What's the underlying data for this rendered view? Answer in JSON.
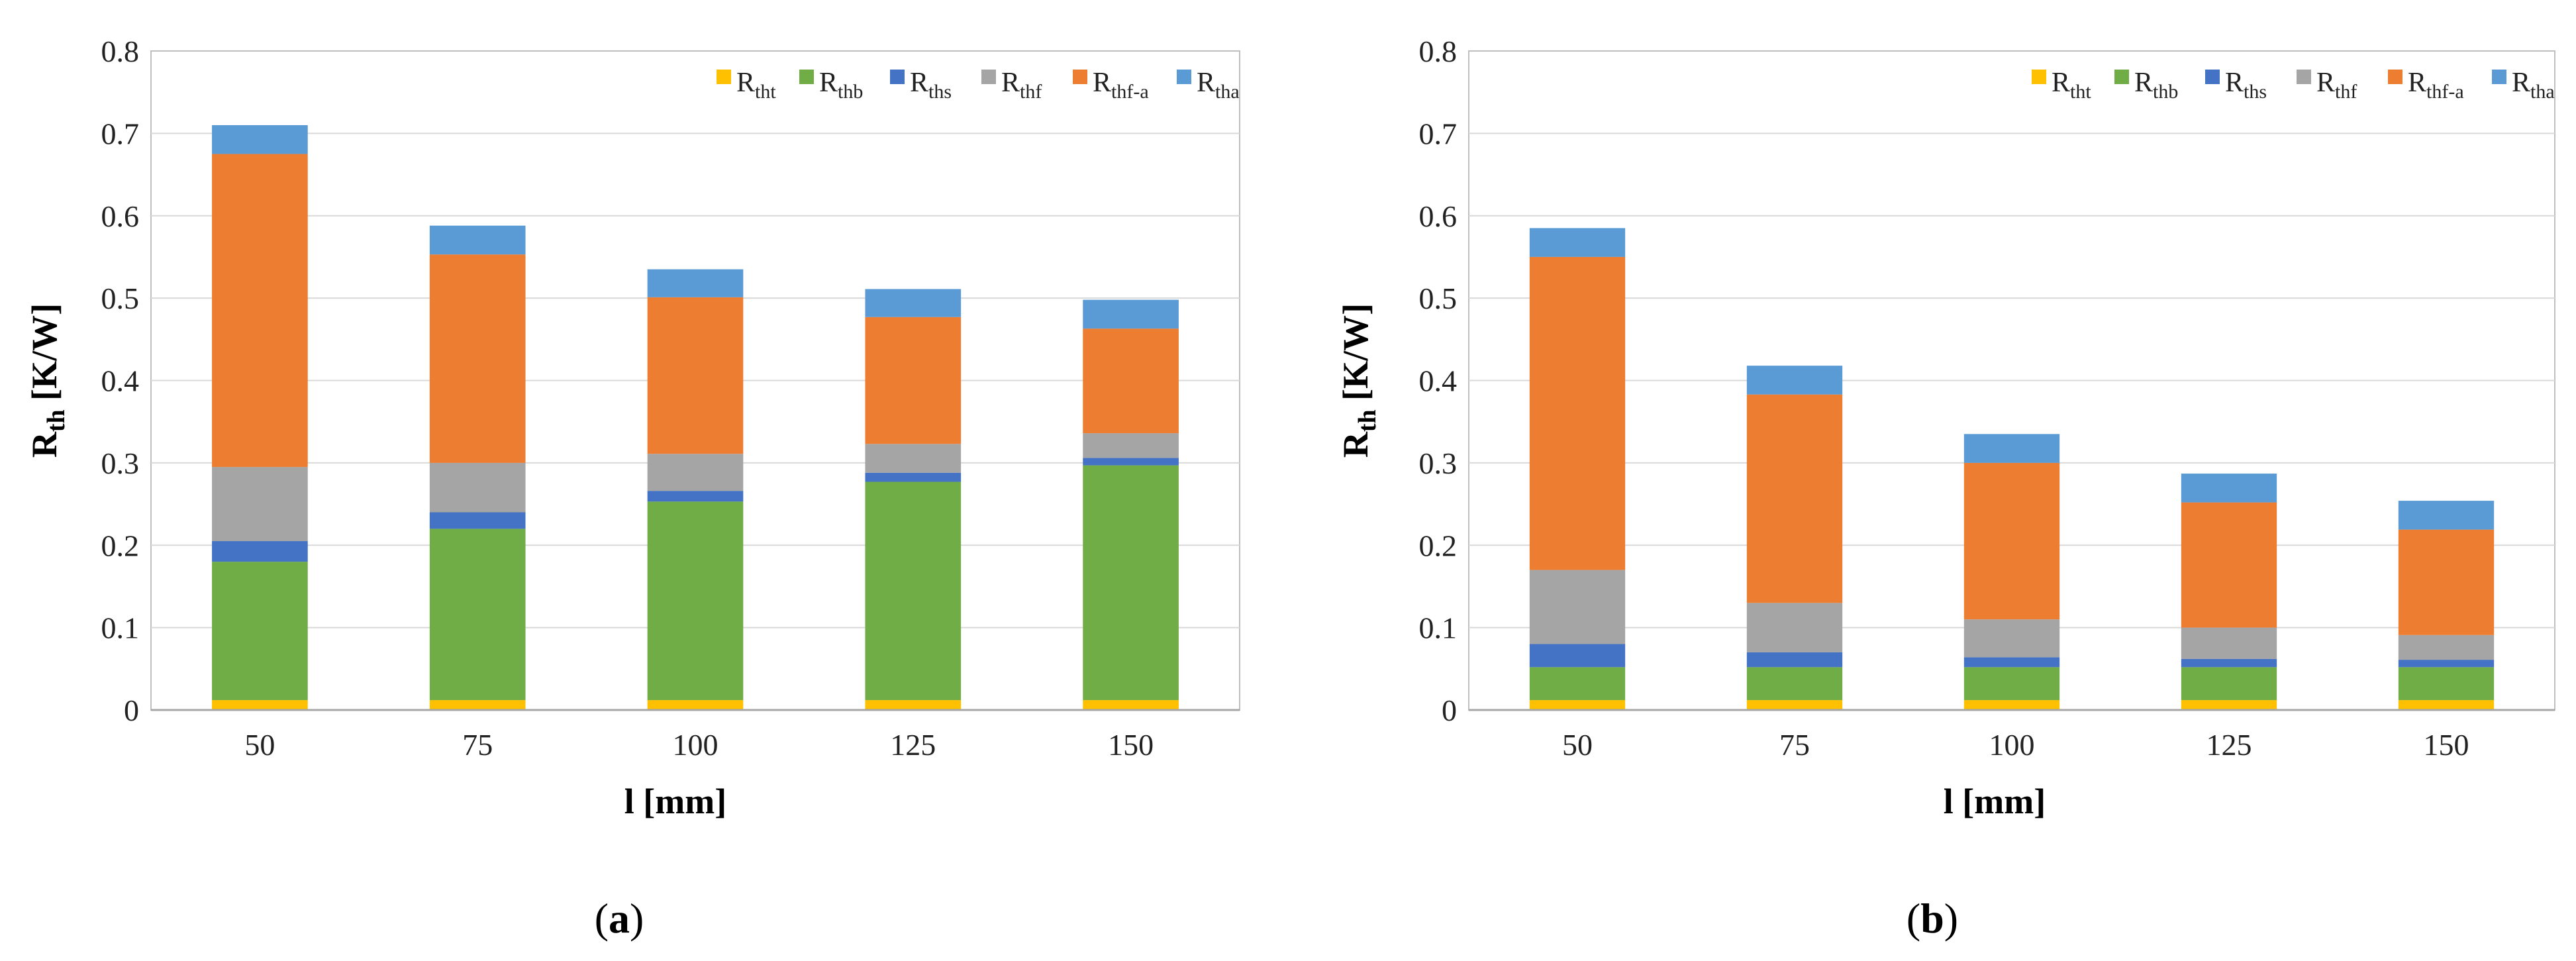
{
  "chart_data": [
    {
      "type": "bar",
      "stacked": true,
      "panel_label": {
        "open": "(",
        "letter": "a",
        "close": ")"
      },
      "categories": [
        "50",
        "75",
        "100",
        "125",
        "150"
      ],
      "xlabel": "l [mm]",
      "ylabel": {
        "main": "R",
        "sub": "th",
        "unit": " [K/W]"
      },
      "ylim": [
        0,
        0.8
      ],
      "yticks": [
        "0",
        "0.1",
        "0.2",
        "0.3",
        "0.4",
        "0.5",
        "0.6",
        "0.7",
        "0.8"
      ],
      "grid": true,
      "legend_position": "top-right",
      "series": [
        {
          "name": "R",
          "sub": "tht",
          "color": "#FFC000",
          "values": [
            0.012,
            0.012,
            0.012,
            0.012,
            0.012
          ]
        },
        {
          "name": "R",
          "sub": "thb",
          "color": "#70AD47",
          "values": [
            0.168,
            0.208,
            0.241,
            0.265,
            0.285
          ]
        },
        {
          "name": "R",
          "sub": "ths",
          "color": "#4472C4",
          "values": [
            0.025,
            0.02,
            0.013,
            0.011,
            0.009
          ]
        },
        {
          "name": "R",
          "sub": "thf",
          "color": "#A5A5A5",
          "values": [
            0.09,
            0.06,
            0.045,
            0.035,
            0.03
          ]
        },
        {
          "name": "R",
          "sub": "thf-a",
          "color": "#ED7D31",
          "values": [
            0.38,
            0.253,
            0.19,
            0.154,
            0.127
          ]
        },
        {
          "name": "R",
          "sub": "tha",
          "color": "#5B9BD5",
          "values": [
            0.035,
            0.035,
            0.034,
            0.034,
            0.035
          ]
        }
      ]
    },
    {
      "type": "bar",
      "stacked": true,
      "panel_label": {
        "open": "(",
        "letter": "b",
        "close": ")"
      },
      "categories": [
        "50",
        "75",
        "100",
        "125",
        "150"
      ],
      "xlabel": "l [mm]",
      "ylabel": {
        "main": "R",
        "sub": "th",
        "unit": " [K/W]"
      },
      "ylim": [
        0,
        0.8
      ],
      "yticks": [
        "0",
        "0.1",
        "0.2",
        "0.3",
        "0.4",
        "0.5",
        "0.6",
        "0.7",
        "0.8"
      ],
      "grid": true,
      "legend_position": "top-right",
      "series": [
        {
          "name": "R",
          "sub": "tht",
          "color": "#FFC000",
          "values": [
            0.012,
            0.012,
            0.012,
            0.012,
            0.012
          ]
        },
        {
          "name": "R",
          "sub": "thb",
          "color": "#70AD47",
          "values": [
            0.04,
            0.04,
            0.04,
            0.04,
            0.04
          ]
        },
        {
          "name": "R",
          "sub": "ths",
          "color": "#4472C4",
          "values": [
            0.028,
            0.018,
            0.012,
            0.01,
            0.009
          ]
        },
        {
          "name": "R",
          "sub": "thf",
          "color": "#A5A5A5",
          "values": [
            0.09,
            0.06,
            0.046,
            0.038,
            0.03
          ]
        },
        {
          "name": "R",
          "sub": "thf-a",
          "color": "#ED7D31",
          "values": [
            0.38,
            0.253,
            0.19,
            0.152,
            0.128
          ]
        },
        {
          "name": "R",
          "sub": "tha",
          "color": "#5B9BD5",
          "values": [
            0.035,
            0.035,
            0.035,
            0.035,
            0.035
          ]
        }
      ]
    }
  ]
}
